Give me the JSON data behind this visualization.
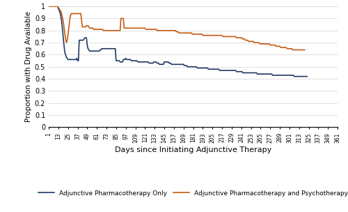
{
  "xlabel": "Days since Initiating Adjunctive Therapy",
  "ylabel": "Proportion with Drug Available",
  "ylim": [
    0,
    1.0
  ],
  "yticks": [
    0,
    0.1,
    0.2,
    0.3,
    0.4,
    0.5,
    0.6,
    0.7,
    0.8,
    0.9,
    1
  ],
  "xticks": [
    1,
    13,
    25,
    37,
    49,
    61,
    73,
    85,
    97,
    109,
    121,
    133,
    145,
    157,
    169,
    181,
    193,
    205,
    217,
    229,
    241,
    253,
    265,
    277,
    289,
    301,
    313,
    325,
    337,
    349,
    361
  ],
  "xtick_labels": [
    "1",
    "13",
    "25",
    "37",
    "49",
    "61",
    "73",
    "85",
    "97",
    "109",
    "121",
    "133",
    "145",
    "157",
    "169",
    "181",
    "193",
    "205",
    "217",
    "229",
    "241",
    "253",
    "265",
    "277",
    "289",
    "301",
    "313",
    "325",
    "337",
    "349",
    "361"
  ],
  "line_blue_color": "#1f3864",
  "line_orange_color": "#c55a11",
  "legend_blue": "Adjunctive Pharmacotherapy Only",
  "legend_orange": "Adjunctive Pharmacotherapy and Psychotherapy",
  "blue_y": [
    1.0,
    1.0,
    1.0,
    1.0,
    1.0,
    1.0,
    1.0,
    1.0,
    1.0,
    1.0,
    1.0,
    1.0,
    0.98,
    0.97,
    0.95,
    0.92,
    0.88,
    0.82,
    0.75,
    0.68,
    0.62,
    0.6,
    0.58,
    0.57,
    0.56,
    0.56,
    0.56,
    0.56,
    0.56,
    0.56,
    0.56,
    0.56,
    0.56,
    0.56,
    0.56,
    0.57,
    0.55,
    0.55,
    0.72,
    0.72,
    0.72,
    0.72,
    0.72,
    0.72,
    0.73,
    0.74,
    0.74,
    0.74,
    0.68,
    0.65,
    0.64,
    0.63,
    0.63,
    0.63,
    0.63,
    0.63,
    0.63,
    0.63,
    0.63,
    0.63,
    0.63,
    0.63,
    0.63,
    0.63,
    0.64,
    0.64,
    0.65,
    0.65,
    0.65,
    0.65,
    0.65,
    0.65,
    0.65,
    0.65,
    0.65,
    0.65,
    0.65,
    0.65,
    0.65,
    0.65,
    0.65,
    0.65,
    0.65,
    0.65,
    0.55,
    0.55,
    0.55,
    0.55,
    0.55,
    0.54,
    0.54,
    0.54,
    0.54,
    0.56,
    0.56,
    0.56,
    0.57,
    0.56,
    0.56,
    0.56,
    0.56,
    0.56,
    0.56,
    0.55,
    0.55,
    0.55,
    0.55,
    0.55,
    0.55,
    0.55,
    0.55,
    0.54,
    0.54,
    0.54,
    0.54,
    0.54,
    0.54,
    0.54,
    0.54,
    0.54,
    0.54,
    0.54,
    0.54,
    0.54,
    0.54,
    0.53,
    0.53,
    0.53,
    0.53,
    0.53,
    0.53,
    0.54,
    0.54,
    0.54,
    0.54,
    0.53,
    0.53,
    0.53,
    0.52,
    0.52,
    0.52,
    0.52,
    0.52,
    0.52,
    0.54,
    0.54,
    0.54,
    0.54,
    0.54,
    0.54,
    0.53,
    0.53,
    0.53,
    0.52,
    0.52,
    0.52,
    0.52,
    0.52,
    0.52,
    0.52,
    0.52,
    0.52,
    0.52,
    0.52,
    0.52,
    0.52,
    0.52,
    0.52,
    0.52,
    0.51,
    0.51,
    0.51,
    0.51,
    0.5,
    0.5,
    0.5,
    0.5,
    0.5,
    0.5,
    0.5,
    0.5,
    0.5,
    0.5,
    0.5,
    0.5,
    0.49,
    0.49,
    0.49,
    0.49,
    0.49,
    0.49,
    0.49,
    0.49,
    0.49,
    0.49,
    0.49,
    0.49,
    0.49,
    0.49,
    0.48,
    0.48,
    0.48,
    0.48,
    0.48,
    0.48,
    0.48,
    0.48,
    0.48,
    0.48,
    0.48,
    0.48,
    0.48,
    0.48,
    0.47,
    0.47,
    0.47,
    0.47,
    0.47,
    0.47,
    0.47,
    0.47,
    0.47,
    0.47,
    0.47,
    0.47,
    0.47,
    0.47,
    0.47,
    0.47,
    0.47,
    0.47,
    0.47,
    0.47,
    0.47,
    0.46,
    0.46,
    0.46,
    0.46,
    0.46,
    0.46,
    0.46,
    0.46,
    0.45,
    0.45,
    0.45,
    0.45,
    0.45,
    0.45,
    0.45,
    0.45,
    0.45,
    0.45,
    0.45,
    0.45,
    0.45,
    0.45,
    0.45,
    0.45,
    0.45,
    0.45,
    0.44,
    0.44,
    0.44,
    0.44,
    0.44,
    0.44,
    0.44,
    0.44,
    0.44,
    0.44,
    0.44,
    0.44,
    0.44,
    0.44,
    0.44,
    0.44,
    0.44,
    0.44,
    0.44,
    0.43,
    0.43,
    0.43,
    0.43,
    0.43,
    0.43,
    0.43,
    0.43,
    0.43,
    0.43,
    0.43,
    0.43,
    0.43,
    0.43,
    0.43,
    0.43,
    0.43,
    0.43,
    0.43,
    0.43,
    0.43,
    0.43,
    0.43,
    0.43,
    0.43,
    0.43,
    0.43,
    0.42,
    0.42,
    0.42,
    0.42,
    0.42,
    0.42,
    0.42,
    0.42,
    0.42,
    0.42,
    0.42,
    0.42,
    0.42,
    0.42,
    0.42,
    0.42,
    0.42
  ],
  "orange_y": [
    1.0,
    1.0,
    1.0,
    1.0,
    1.0,
    1.0,
    1.0,
    1.0,
    1.0,
    1.0,
    1.0,
    1.0,
    0.99,
    0.98,
    0.97,
    0.96,
    0.94,
    0.91,
    0.88,
    0.83,
    0.78,
    0.73,
    0.7,
    0.72,
    0.76,
    0.82,
    0.88,
    0.92,
    0.94,
    0.94,
    0.94,
    0.94,
    0.94,
    0.94,
    0.94,
    0.94,
    0.94,
    0.94,
    0.94,
    0.94,
    0.94,
    0.88,
    0.83,
    0.83,
    0.83,
    0.83,
    0.83,
    0.84,
    0.84,
    0.84,
    0.83,
    0.82,
    0.82,
    0.82,
    0.82,
    0.82,
    0.81,
    0.81,
    0.81,
    0.81,
    0.81,
    0.81,
    0.81,
    0.81,
    0.81,
    0.81,
    0.81,
    0.81,
    0.8,
    0.8,
    0.8,
    0.8,
    0.8,
    0.8,
    0.8,
    0.8,
    0.8,
    0.8,
    0.8,
    0.8,
    0.8,
    0.8,
    0.8,
    0.8,
    0.8,
    0.8,
    0.8,
    0.8,
    0.8,
    0.8,
    0.9,
    0.9,
    0.9,
    0.9,
    0.82,
    0.82,
    0.82,
    0.82,
    0.82,
    0.82,
    0.82,
    0.82,
    0.82,
    0.82,
    0.82,
    0.82,
    0.82,
    0.82,
    0.82,
    0.82,
    0.82,
    0.82,
    0.82,
    0.82,
    0.82,
    0.82,
    0.82,
    0.82,
    0.82,
    0.82,
    0.82,
    0.81,
    0.81,
    0.81,
    0.81,
    0.81,
    0.81,
    0.81,
    0.81,
    0.81,
    0.81,
    0.81,
    0.81,
    0.81,
    0.81,
    0.8,
    0.8,
    0.8,
    0.8,
    0.8,
    0.8,
    0.8,
    0.8,
    0.8,
    0.8,
    0.8,
    0.8,
    0.8,
    0.8,
    0.8,
    0.8,
    0.8,
    0.8,
    0.8,
    0.8,
    0.8,
    0.8,
    0.8,
    0.8,
    0.79,
    0.79,
    0.79,
    0.78,
    0.78,
    0.78,
    0.78,
    0.78,
    0.78,
    0.78,
    0.78,
    0.78,
    0.78,
    0.78,
    0.78,
    0.78,
    0.78,
    0.78,
    0.78,
    0.78,
    0.77,
    0.77,
    0.77,
    0.77,
    0.77,
    0.77,
    0.77,
    0.77,
    0.77,
    0.77,
    0.77,
    0.77,
    0.77,
    0.76,
    0.76,
    0.76,
    0.76,
    0.76,
    0.76,
    0.76,
    0.76,
    0.76,
    0.76,
    0.76,
    0.76,
    0.76,
    0.76,
    0.76,
    0.76,
    0.76,
    0.76,
    0.76,
    0.76,
    0.76,
    0.76,
    0.76,
    0.76,
    0.76,
    0.75,
    0.75,
    0.75,
    0.75,
    0.75,
    0.75,
    0.75,
    0.75,
    0.75,
    0.75,
    0.75,
    0.75,
    0.75,
    0.75,
    0.75,
    0.75,
    0.75,
    0.74,
    0.74,
    0.74,
    0.74,
    0.74,
    0.74,
    0.74,
    0.74,
    0.73,
    0.73,
    0.73,
    0.72,
    0.72,
    0.72,
    0.72,
    0.71,
    0.71,
    0.71,
    0.71,
    0.71,
    0.71,
    0.71,
    0.7,
    0.7,
    0.7,
    0.7,
    0.7,
    0.7,
    0.7,
    0.69,
    0.69,
    0.69,
    0.69,
    0.69,
    0.69,
    0.69,
    0.69,
    0.69,
    0.69,
    0.69,
    0.69,
    0.69,
    0.68,
    0.68,
    0.68,
    0.68,
    0.68,
    0.68,
    0.68,
    0.67,
    0.67,
    0.67,
    0.67,
    0.67,
    0.67,
    0.66,
    0.66,
    0.66,
    0.66,
    0.66,
    0.66,
    0.66,
    0.66,
    0.65,
    0.65,
    0.65,
    0.65,
    0.65,
    0.65,
    0.65,
    0.64,
    0.64,
    0.64,
    0.64,
    0.64,
    0.64,
    0.64,
    0.64,
    0.64,
    0.64,
    0.64,
    0.64,
    0.64,
    0.64,
    0.64,
    0.64
  ]
}
